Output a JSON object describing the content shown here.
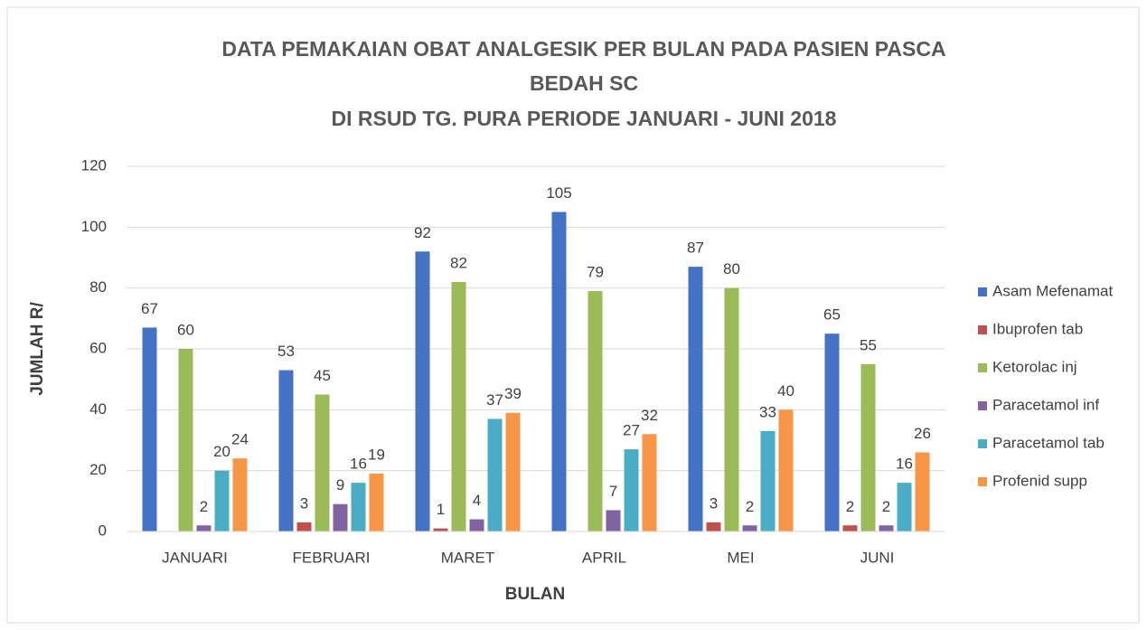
{
  "chart_data": {
    "type": "bar",
    "title": [
      "DATA PEMAKAIAN OBAT ANALGESIK PER BULAN PADA PASIEN PASCA",
      "BEDAH SC",
      "DI RSUD TG. PURA PERIODE JANUARI - JUNI 2018"
    ],
    "x_label": "BULAN",
    "y_label": "JUMLAH R/",
    "categories": [
      "JANUARI",
      "FEBRUARI",
      "MARET",
      "APRIL",
      "MEI",
      "JUNI"
    ],
    "series": [
      {
        "name": "Asam Mefenamat",
        "color": "#4472c4",
        "values": [
          67,
          53,
          92,
          105,
          87,
          65
        ]
      },
      {
        "name": "Ibuprofen tab",
        "color": "#c0504d",
        "values": [
          null,
          3,
          1,
          null,
          3,
          2
        ]
      },
      {
        "name": "Ketorolac inj",
        "color": "#9bbb59",
        "values": [
          60,
          45,
          82,
          79,
          80,
          55
        ]
      },
      {
        "name": "Paracetamol inf",
        "color": "#8064a2",
        "values": [
          2,
          9,
          4,
          7,
          2,
          2
        ]
      },
      {
        "name": "Paracetamol tab",
        "color": "#4bacc6",
        "values": [
          20,
          16,
          37,
          27,
          33,
          16
        ]
      },
      {
        "name": "Profenid supp",
        "color": "#f79646",
        "values": [
          24,
          19,
          39,
          32,
          40,
          26
        ]
      }
    ],
    "ylim": [
      0,
      120
    ],
    "yticks": [
      0,
      20,
      40,
      60,
      80,
      100,
      120
    ],
    "grid": true,
    "legend": "right"
  }
}
